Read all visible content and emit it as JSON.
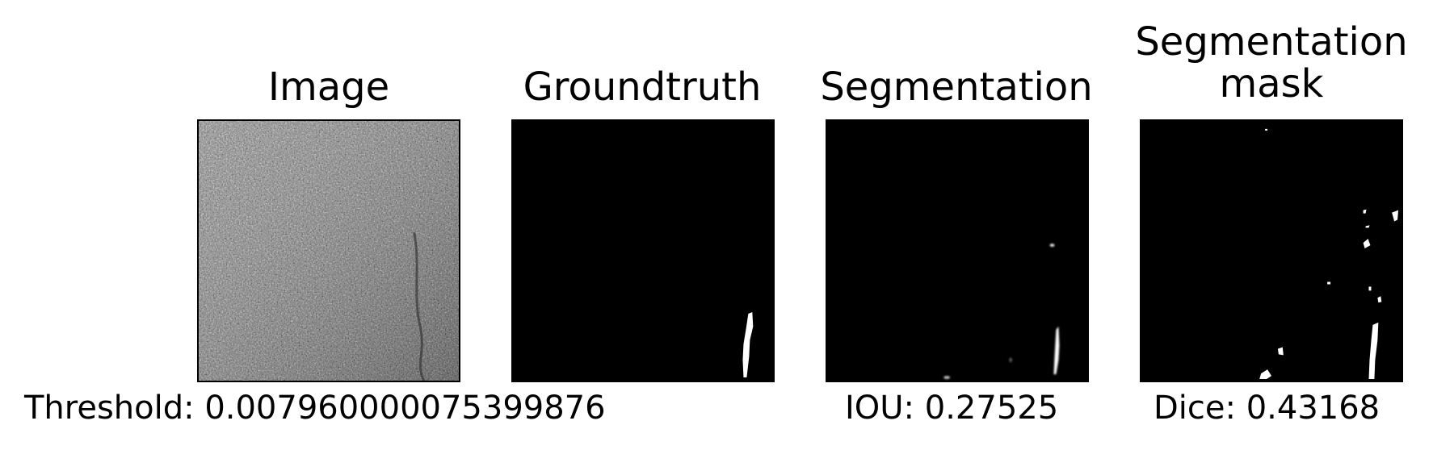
{
  "panels": [
    {
      "id": "image",
      "title": "Image"
    },
    {
      "id": "groundtruth",
      "title": "Groundtruth"
    },
    {
      "id": "segmentation",
      "title": "Segmentation"
    },
    {
      "id": "mask",
      "title_line1": "Segmentation",
      "title_line2": "mask"
    }
  ],
  "captions": {
    "threshold": "Threshold: 0.007960000075399876",
    "iou": "IOU: 0.27525",
    "dice": "Dice: 0.43168"
  },
  "colors": {
    "background": "#ffffff",
    "mask_background": "#000000",
    "mask_foreground": "#ffffff",
    "image_texture": "#7a7a7a"
  }
}
